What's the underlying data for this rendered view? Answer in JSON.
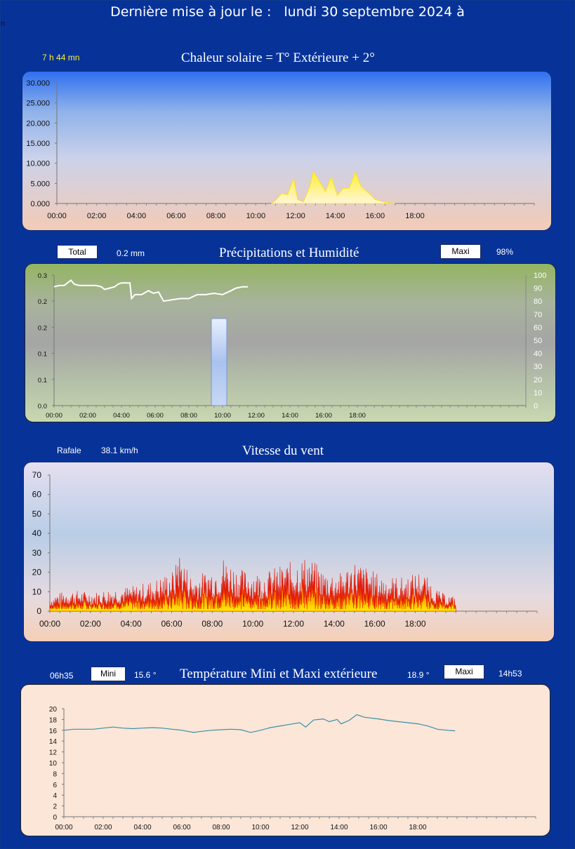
{
  "header": {
    "prefix": "Dernière mise à jour le :",
    "date": "lundi 30 septembre 2024 à",
    "stray": "n"
  },
  "solar": {
    "duration": "7 h 44  mn",
    "title": "Chaleur solaire = T° Extérieure + 2°"
  },
  "rain": {
    "total_label": "Total",
    "total_value": "0.2 mm",
    "title": "Précipitations et Humidité",
    "maxi_label": "Maxi",
    "maxi_value": "98%"
  },
  "wind": {
    "gust_label": "Rafale",
    "gust_value": "38.1 km/h",
    "title": "Vitesse du vent"
  },
  "temp": {
    "min_time": "06h35",
    "mini_label": "Mini",
    "min_value": "15.6  °",
    "title": "Température Mini et Maxi extérieure",
    "max_value": "18.9  °",
    "maxi_label": "Maxi",
    "max_time": "14h53"
  },
  "colors": {
    "background": "#073399",
    "solar_fill": "#ffef30",
    "wind_fill": "#ff2a00",
    "temp_line": "#3a8fa8",
    "humidity_line": "#ffffff",
    "rain_bar": "#a9c2ef"
  },
  "chart_data": [
    {
      "type": "area",
      "title": "Chaleur solaire = T° Extérieure + 2°",
      "x_ticks": [
        "00:00",
        "02:00",
        "04:00",
        "06:00",
        "08:00",
        "10:00",
        "12:00",
        "14:00",
        "16:00",
        "18:00"
      ],
      "y_ticks": [
        "0.000",
        "5.000",
        "10.000",
        "15.000",
        "20.000",
        "25.000",
        "30.000"
      ],
      "ylim": [
        0,
        30000
      ],
      "x_range_hours": [
        0,
        24
      ],
      "series": [
        {
          "points": [
            [
              10.8,
              0
            ],
            [
              11.0,
              800
            ],
            [
              11.3,
              2500
            ],
            [
              11.6,
              2200
            ],
            [
              11.9,
              6200
            ],
            [
              12.1,
              1000
            ],
            [
              12.4,
              400
            ],
            [
              12.7,
              4000
            ],
            [
              12.9,
              8000
            ],
            [
              13.2,
              5500
            ],
            [
              13.5,
              3000
            ],
            [
              13.8,
              6600
            ],
            [
              14.1,
              2000
            ],
            [
              14.4,
              3800
            ],
            [
              14.7,
              3800
            ],
            [
              15.0,
              7800
            ],
            [
              15.3,
              4200
            ],
            [
              15.7,
              2500
            ],
            [
              16.0,
              1000
            ],
            [
              16.5,
              300
            ],
            [
              17.0,
              0
            ]
          ]
        }
      ]
    },
    {
      "type": "bar",
      "title": "Précipitations et Humidité",
      "x_ticks": [
        "00:00",
        "02:00",
        "04:00",
        "06:00",
        "08:00",
        "10:00",
        "12:00",
        "14:00",
        "16:00",
        "18:00"
      ],
      "y_ticks_left": [
        "0.0",
        "0.1",
        "0.1",
        "0.2",
        "0.2",
        "0.3"
      ],
      "y_ticks_right": [
        "0",
        "10",
        "20",
        "30",
        "40",
        "50",
        "60",
        "70",
        "80",
        "90",
        "100"
      ],
      "ylim_left": [
        0,
        0.3
      ],
      "ylim_right": [
        0,
        100
      ],
      "rain_bars": [
        {
          "x": "10:00",
          "value": 0.2
        }
      ],
      "humidity": [
        [
          0,
          91
        ],
        [
          0.3,
          92
        ],
        [
          0.6,
          92
        ],
        [
          0.8,
          94
        ],
        [
          1.0,
          96
        ],
        [
          1.2,
          93
        ],
        [
          1.5,
          92
        ],
        [
          2.0,
          92
        ],
        [
          2.5,
          92
        ],
        [
          2.8,
          91
        ],
        [
          3.0,
          89
        ],
        [
          3.3,
          90
        ],
        [
          3.6,
          91
        ],
        [
          3.8,
          93
        ],
        [
          4.0,
          94
        ],
        [
          4.5,
          94
        ],
        [
          4.6,
          82
        ],
        [
          4.8,
          85
        ],
        [
          5.2,
          85
        ],
        [
          5.6,
          88
        ],
        [
          5.9,
          86
        ],
        [
          6.2,
          87
        ],
        [
          6.5,
          80
        ],
        [
          7.0,
          81
        ],
        [
          7.5,
          82
        ],
        [
          8.0,
          82
        ],
        [
          8.5,
          85
        ],
        [
          9.0,
          85
        ],
        [
          9.5,
          86
        ],
        [
          10.0,
          85
        ],
        [
          10.5,
          88
        ],
        [
          10.8,
          90
        ],
        [
          11.2,
          91
        ],
        [
          11.5,
          91
        ]
      ]
    },
    {
      "type": "area",
      "title": "Vitesse du vent",
      "x_ticks": [
        "00:00",
        "02:00",
        "04:00",
        "06:00",
        "08:00",
        "10:00",
        "12:00",
        "14:00",
        "16:00",
        "18:00"
      ],
      "y_ticks": [
        "0",
        "10",
        "20",
        "30",
        "40",
        "50",
        "60",
        "70"
      ],
      "ylim": [
        0,
        70
      ],
      "x_range_hours": [
        0,
        24
      ],
      "data_end_hours": 20.0,
      "peaks": [
        [
          0.2,
          8
        ],
        [
          1.0,
          10
        ],
        [
          2.2,
          9
        ],
        [
          3.2,
          11
        ],
        [
          4.2,
          12
        ],
        [
          5.2,
          15
        ],
        [
          6.2,
          20
        ],
        [
          6.25,
          31
        ],
        [
          7.0,
          16
        ],
        [
          8.4,
          22
        ],
        [
          8.5,
          26
        ],
        [
          9.3,
          20
        ],
        [
          10.5,
          18
        ],
        [
          11.2,
          21
        ],
        [
          12.7,
          26
        ],
        [
          13.5,
          19
        ],
        [
          14.3,
          18
        ],
        [
          15.0,
          24
        ],
        [
          16.3,
          17
        ],
        [
          17.4,
          16
        ],
        [
          18.3,
          19
        ],
        [
          19.2,
          9
        ],
        [
          19.9,
          7
        ]
      ]
    },
    {
      "type": "line",
      "title": "Température Mini et Maxi extérieure",
      "x_ticks": [
        "00:00",
        "02:00",
        "04:00",
        "06:00",
        "08:00",
        "10:00",
        "12:00",
        "14:00",
        "16:00",
        "18:00"
      ],
      "y_ticks": [
        "0",
        "2",
        "4",
        "6",
        "8",
        "10",
        "12",
        "14",
        "16",
        "18",
        "20"
      ],
      "ylim": [
        0,
        20
      ],
      "x_range_hours": [
        0,
        24
      ],
      "series": [
        {
          "points": [
            [
              0,
              16.0
            ],
            [
              0.5,
              16.2
            ],
            [
              1.0,
              16.2
            ],
            [
              1.5,
              16.2
            ],
            [
              2.0,
              16.4
            ],
            [
              2.5,
              16.6
            ],
            [
              3.0,
              16.4
            ],
            [
              3.5,
              16.3
            ],
            [
              4.0,
              16.4
            ],
            [
              4.5,
              16.5
            ],
            [
              5.0,
              16.4
            ],
            [
              5.5,
              16.2
            ],
            [
              6.0,
              16.0
            ],
            [
              6.6,
              15.6
            ],
            [
              7.0,
              15.8
            ],
            [
              7.5,
              16.0
            ],
            [
              8.0,
              16.1
            ],
            [
              8.5,
              16.2
            ],
            [
              9.0,
              16.1
            ],
            [
              9.5,
              15.6
            ],
            [
              10.0,
              16.0
            ],
            [
              10.5,
              16.5
            ],
            [
              11.0,
              16.8
            ],
            [
              11.5,
              17.1
            ],
            [
              12.0,
              17.4
            ],
            [
              12.3,
              16.6
            ],
            [
              12.7,
              17.9
            ],
            [
              13.2,
              18.1
            ],
            [
              13.5,
              17.6
            ],
            [
              13.9,
              18.0
            ],
            [
              14.1,
              17.2
            ],
            [
              14.5,
              17.8
            ],
            [
              14.9,
              18.9
            ],
            [
              15.3,
              18.4
            ],
            [
              16.0,
              18.1
            ],
            [
              16.5,
              17.8
            ],
            [
              17.0,
              17.6
            ],
            [
              17.5,
              17.4
            ],
            [
              18.0,
              17.2
            ],
            [
              18.5,
              16.8
            ],
            [
              19.0,
              16.2
            ],
            [
              19.5,
              16.0
            ],
            [
              19.9,
              15.9
            ]
          ]
        }
      ]
    }
  ]
}
